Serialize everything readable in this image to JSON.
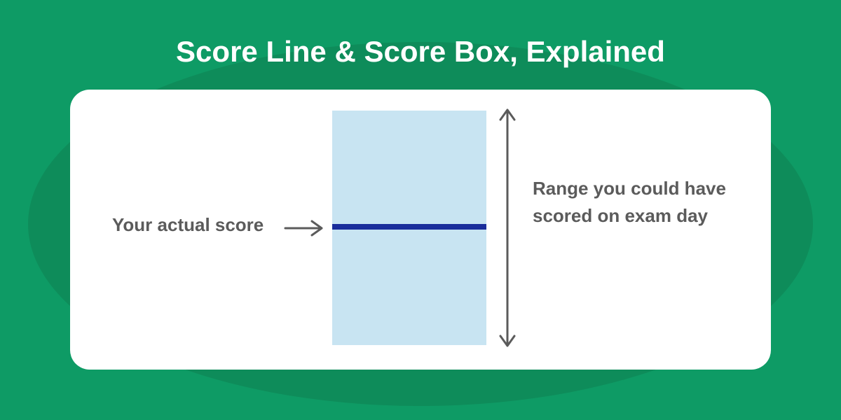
{
  "infographic": {
    "title": "Score Line & Score Box, Explained",
    "title_fontsize": 42,
    "title_color": "#ffffff",
    "background_color": "#0e9b65",
    "blob_color": "#0e8c5a",
    "card_bg": "#ffffff",
    "card_radius": 28,
    "left_label": "Your actual score",
    "right_label": "Range you could have scored on exam day",
    "label_color": "#5b5b5b",
    "label_fontsize": 26,
    "score_box_color": "#c8e4f2",
    "score_line_color": "#1a2d9b",
    "score_line_thickness": 8,
    "arrow_color": "#5b5b5b",
    "arrow_stroke": 3,
    "score_box_width": 220,
    "score_box_height": 335,
    "range_arrow_height": 345
  }
}
